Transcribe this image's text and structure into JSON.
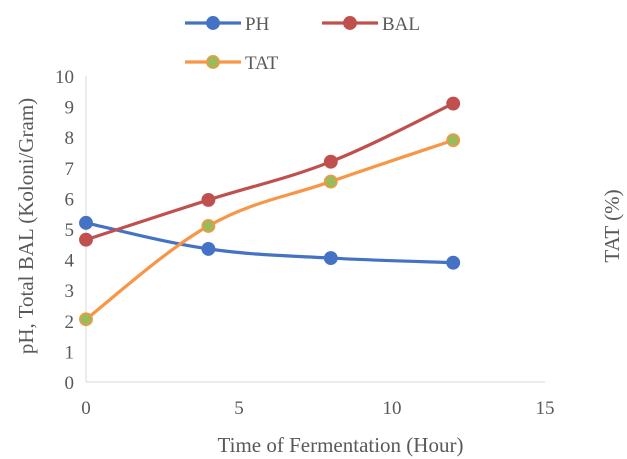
{
  "chart_data": {
    "type": "line",
    "title": "",
    "xlabel": "Time of Fermentation (Hour)",
    "ylabel": "pH, Total BAL  (Koloni/Gram)",
    "ylabel_right": "TAT (%)",
    "xlim": [
      0,
      15
    ],
    "ylim": [
      0,
      10
    ],
    "xticks": [
      "0",
      "5",
      "10",
      "15"
    ],
    "yticks": [
      "0",
      "1",
      "2",
      "3",
      "4",
      "5",
      "6",
      "7",
      "8",
      "9",
      "10"
    ],
    "grid": false,
    "legend_position": "top",
    "x": [
      0,
      4,
      8,
      12
    ],
    "series": [
      {
        "name": "PH",
        "color": "#4472C4",
        "values": [
          5.2,
          4.35,
          4.05,
          3.9
        ]
      },
      {
        "name": "BAL",
        "color": "#C0504D",
        "values": [
          4.65,
          5.95,
          7.2,
          9.1
        ]
      },
      {
        "name": "TAT",
        "color": "#F79646",
        "marker_fill": "#9BBB59",
        "values": [
          2.05,
          5.1,
          6.55,
          7.9
        ]
      }
    ]
  }
}
